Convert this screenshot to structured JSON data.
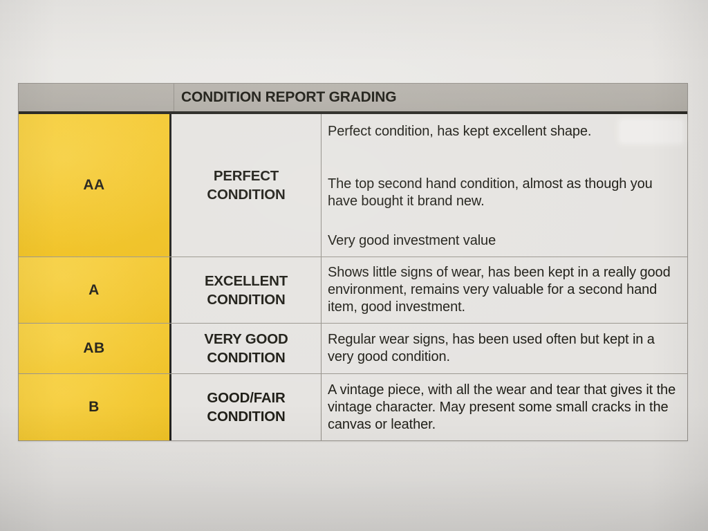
{
  "table": {
    "header": "CONDITION REPORT GRADING",
    "rows": [
      {
        "grade": "AA",
        "label_line1": "PERFECT",
        "label_line2": "CONDITION",
        "paragraphs": [
          "Perfect condition, has kept excellent shape.",
          "The top second hand condition, almost as though you have bought it brand new.",
          "Very good investment value"
        ]
      },
      {
        "grade": "A",
        "label_line1": "EXCELLENT",
        "label_line2": "CONDITION",
        "paragraphs": [
          "Shows little signs of wear, has been kept in a really good environment, remains very valuable for a second hand item, good investment."
        ]
      },
      {
        "grade": "AB",
        "label_line1": "VERY GOOD",
        "label_line2": "CONDITION",
        "paragraphs": [
          "Regular wear signs, has been used often but kept in a very good condition."
        ]
      },
      {
        "grade": "B",
        "label_line1": "GOOD/FAIR",
        "label_line2": "CONDITION",
        "paragraphs": [
          "A vintage piece, with all the wear and tear that gives it the vintage character. May present some small cracks in the canvas or leather."
        ]
      }
    ]
  },
  "colors": {
    "grade_column_yellow": "#f2c322",
    "header_bar_gray": "#b2aea7",
    "cell_background": "#e5e3e0",
    "paper_background": "#e8e6e3",
    "thick_border_black": "#1d1c17",
    "text": "#17160f"
  }
}
